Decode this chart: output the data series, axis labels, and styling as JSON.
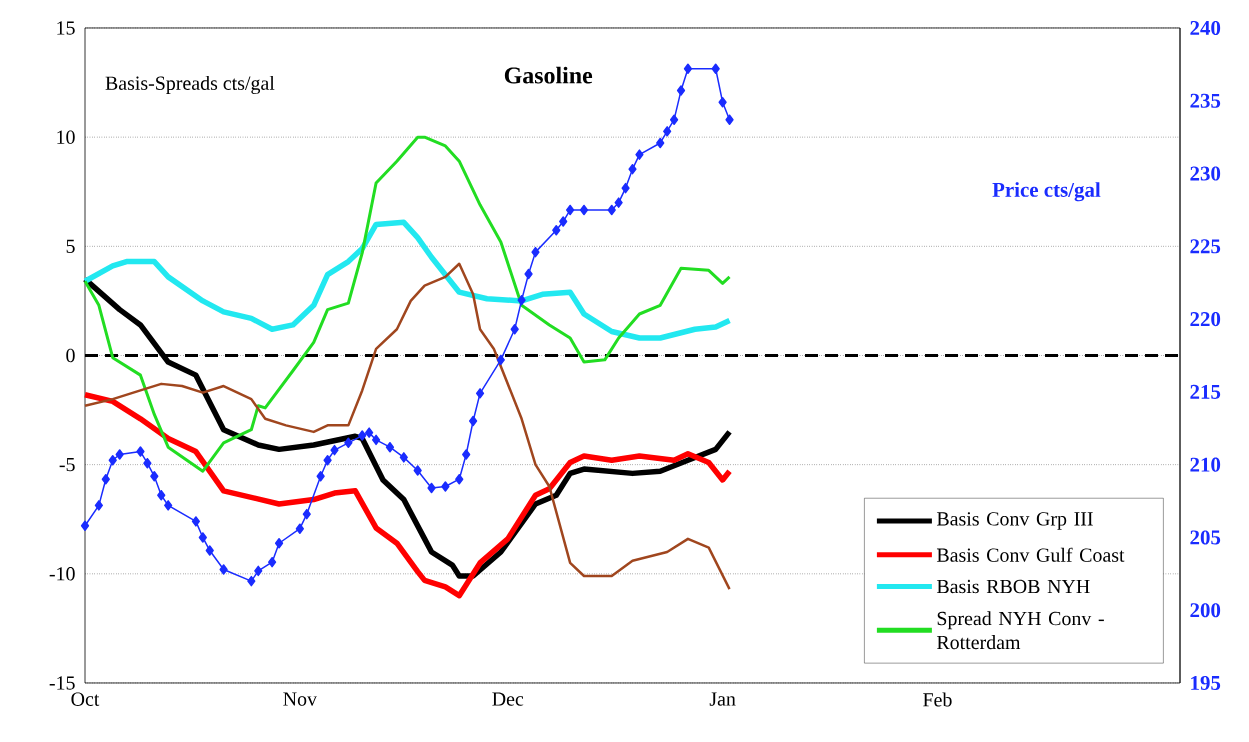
{
  "chart_data": {
    "type": "line",
    "title": "Gasoline",
    "ylabel": "Basis-Spreads cts/gal",
    "y2label": "Price cts/gal",
    "categories": [
      "Oct",
      null,
      null,
      null,
      null,
      null,
      null,
      null,
      null,
      null,
      null,
      null,
      null,
      null,
      null,
      null,
      null,
      null,
      null,
      null,
      null,
      null,
      null,
      null,
      null,
      null,
      null,
      null,
      null,
      null,
      null,
      "Nov",
      null,
      null,
      null,
      null,
      null,
      null,
      null,
      null,
      null,
      null,
      null,
      null,
      null,
      null,
      null,
      null,
      null,
      null,
      null,
      null,
      null,
      null,
      null,
      null,
      null,
      null,
      null,
      null,
      null,
      "Dec",
      null,
      null,
      null,
      null,
      null,
      null,
      null,
      null,
      null,
      null,
      null,
      null,
      null,
      null,
      null,
      null,
      null,
      null,
      null,
      null,
      null,
      null,
      null,
      null,
      null,
      null,
      null,
      null,
      null,
      null,
      "Jan",
      null,
      null,
      null,
      null,
      null,
      null,
      null,
      null,
      null,
      null,
      null,
      null,
      null,
      null,
      null,
      null,
      null,
      null,
      null,
      null,
      null,
      null,
      null,
      null,
      null,
      null,
      null,
      null,
      null,
      null,
      "Feb",
      null,
      null,
      null,
      null,
      null,
      null,
      null,
      null,
      null,
      null,
      null,
      null,
      null,
      null,
      null,
      null,
      null,
      null,
      null,
      null,
      null,
      null,
      null,
      null,
      null,
      null,
      null,
      null,
      null,
      null,
      null,
      null,
      null,
      null,
      null
    ],
    "ylim": [
      -15,
      15
    ],
    "yticks": [
      {
        "value": -15,
        "label": "-15"
      },
      {
        "value": -10,
        "label": "-10"
      },
      {
        "value": -5,
        "label": "-5"
      },
      {
        "value": 0,
        "label": "0"
      },
      {
        "value": 5,
        "label": "5"
      },
      {
        "value": 10,
        "label": "10"
      },
      {
        "value": 15,
        "label": "15"
      }
    ],
    "y2lim": [
      195,
      240
    ],
    "y2ticks": [
      {
        "value": 195,
        "label": "195"
      },
      {
        "value": 200,
        "label": "200"
      },
      {
        "value": 205,
        "label": "205"
      },
      {
        "value": 210,
        "label": "210"
      },
      {
        "value": 215,
        "label": "215"
      },
      {
        "value": 220,
        "label": "220"
      },
      {
        "value": 225,
        "label": "225"
      },
      {
        "value": 230,
        "label": "230"
      },
      {
        "value": 235,
        "label": "235"
      },
      {
        "value": 240,
        "label": "240"
      }
    ],
    "grid": "y",
    "legend": "bottom right",
    "ref_lines": [
      {
        "axis": "y",
        "value": 0,
        "color": "#000000",
        "line_style": "dashed"
      }
    ],
    "series": [
      {
        "name": "Basis Conv Grp III",
        "color": "#000000",
        "marker": "none",
        "values": [
          3.5,
          null,
          null,
          null,
          null,
          2.1,
          null,
          null,
          1.4,
          null,
          null,
          null,
          -0.3,
          null,
          null,
          null,
          -0.9,
          null,
          null,
          null,
          -3.4,
          null,
          null,
          null,
          null,
          -4.1,
          null,
          null,
          -4.3,
          null,
          null,
          null,
          null,
          -4.1,
          null,
          null,
          null,
          null,
          null,
          -3.7,
          -3.8,
          null,
          null,
          -5.7,
          null,
          null,
          -6.6,
          null,
          null,
          -8.4,
          -9.0,
          null,
          null,
          -9.6,
          -10.1,
          null,
          -10.1,
          null,
          null,
          null,
          -9.0,
          null,
          null,
          null,
          null,
          -6.8,
          null,
          null,
          -6.4,
          null,
          -5.4,
          null,
          -5.2,
          null,
          null,
          null,
          null,
          null,
          null,
          -5.4,
          null,
          null,
          null,
          -5.3,
          null,
          null,
          null,
          -4.8,
          null,
          null,
          null,
          -4.3,
          null,
          -3.5,
          null,
          null,
          null,
          null,
          null,
          null,
          null,
          null,
          null,
          null,
          null,
          null,
          null,
          null,
          null,
          null,
          null,
          null,
          null,
          null,
          null,
          null,
          null,
          null,
          null,
          null,
          null,
          null,
          null,
          null,
          null,
          null,
          null,
          null,
          null,
          null,
          null,
          null,
          null,
          null,
          null,
          null,
          null,
          null,
          null,
          null,
          null,
          null,
          null,
          null,
          null,
          null,
          null,
          null,
          null,
          null,
          null,
          null,
          null,
          null,
          null,
          null,
          null,
          null,
          null
        ]
      },
      {
        "name": "Basis Conv Gulf Coast",
        "color": "#ff0000",
        "marker": "none",
        "values": [
          -1.8,
          null,
          null,
          null,
          -2.1,
          null,
          null,
          null,
          -2.9,
          null,
          null,
          null,
          -3.8,
          null,
          null,
          null,
          -4.4,
          null,
          null,
          null,
          -6.2,
          null,
          null,
          null,
          null,
          null,
          null,
          null,
          -6.8,
          null,
          null,
          null,
          null,
          -6.6,
          null,
          null,
          -6.3,
          null,
          null,
          -6.2,
          null,
          null,
          -7.9,
          null,
          null,
          -8.6,
          null,
          null,
          -9.9,
          -10.3,
          null,
          null,
          -10.6,
          null,
          -11.0,
          null,
          null,
          -9.5,
          null,
          null,
          null,
          -8.4,
          null,
          null,
          null,
          -6.4,
          null,
          -6.1,
          null,
          null,
          -4.9,
          null,
          -4.6,
          null,
          null,
          null,
          -4.8,
          null,
          null,
          null,
          -4.6,
          null,
          null,
          null,
          null,
          -4.8,
          null,
          -4.5,
          null,
          null,
          -4.9,
          null,
          -5.7,
          -5.3,
          null,
          null,
          null,
          null,
          null,
          null,
          null,
          null,
          null,
          null,
          null,
          null,
          null,
          null,
          null,
          null,
          null,
          null,
          null,
          null,
          null,
          null,
          null,
          null,
          null,
          null,
          null,
          null,
          null,
          null,
          null,
          null,
          null,
          null,
          null,
          null,
          null,
          null,
          null,
          null,
          null,
          null,
          null,
          null,
          null,
          null,
          null,
          null,
          null,
          null,
          null,
          null,
          null,
          null,
          null,
          null,
          null,
          null,
          null,
          null,
          null,
          null,
          null,
          null,
          null
        ]
      },
      {
        "name": "Basis RBOB NYH",
        "color": "#22e8f0",
        "marker": "none",
        "values": [
          3.4,
          null,
          null,
          null,
          4.1,
          null,
          4.3,
          null,
          null,
          null,
          4.3,
          null,
          3.6,
          null,
          null,
          null,
          null,
          2.5,
          null,
          null,
          2.0,
          null,
          null,
          null,
          1.7,
          null,
          null,
          1.2,
          null,
          null,
          1.4,
          null,
          null,
          2.3,
          null,
          3.7,
          null,
          null,
          4.3,
          null,
          4.9,
          null,
          6.0,
          null,
          null,
          null,
          6.1,
          null,
          5.4,
          null,
          4.5,
          null,
          null,
          null,
          2.9,
          null,
          null,
          null,
          2.6,
          null,
          null,
          null,
          null,
          2.5,
          null,
          null,
          2.8,
          null,
          null,
          null,
          2.9,
          null,
          1.9,
          null,
          null,
          null,
          1.1,
          null,
          null,
          null,
          0.8,
          null,
          null,
          0.8,
          null,
          null,
          null,
          null,
          1.2,
          null,
          null,
          1.3,
          null,
          1.6,
          null,
          null,
          null,
          null,
          null,
          null,
          null,
          null,
          null,
          null,
          null,
          null,
          null,
          null,
          null,
          null,
          null,
          null,
          null,
          null,
          null,
          null,
          null,
          null,
          null,
          null,
          null,
          null,
          null,
          null,
          null,
          null,
          null,
          null,
          null,
          null,
          null,
          null,
          null,
          null,
          null,
          null,
          null,
          null,
          null,
          null,
          null,
          null,
          null,
          null,
          null,
          null,
          null,
          null,
          null,
          null,
          null,
          null,
          null,
          null,
          null,
          null,
          null,
          null,
          null
        ]
      },
      {
        "name": "Spread NYH Conv - Rotterdam",
        "color": "#22dd22",
        "marker": "none",
        "values": [
          3.4,
          null,
          2.3,
          null,
          -0.1,
          null,
          null,
          null,
          -0.9,
          null,
          -2.7,
          null,
          -4.2,
          null,
          null,
          null,
          null,
          -5.3,
          null,
          null,
          -4.0,
          null,
          null,
          null,
          -3.4,
          -2.3,
          -2.4,
          null,
          null,
          null,
          -0.7,
          null,
          null,
          0.6,
          null,
          2.1,
          null,
          null,
          2.4,
          null,
          4.7,
          null,
          7.9,
          null,
          null,
          8.9,
          null,
          null,
          10.0,
          10.0,
          null,
          null,
          9.6,
          null,
          8.9,
          null,
          null,
          6.9,
          null,
          null,
          5.2,
          null,
          null,
          2.3,
          null,
          null,
          null,
          1.4,
          null,
          null,
          0.8,
          null,
          -0.3,
          null,
          null,
          -0.2,
          null,
          0.8,
          null,
          null,
          1.9,
          null,
          null,
          2.3,
          null,
          null,
          4.0,
          null,
          null,
          null,
          3.9,
          null,
          3.3,
          3.6,
          null,
          null,
          null,
          null,
          null,
          null,
          null,
          null,
          null,
          null,
          null,
          null,
          null,
          null,
          null,
          null,
          null,
          null,
          null,
          null,
          null,
          null,
          null,
          null,
          null,
          null,
          null,
          null,
          null,
          null,
          null,
          null,
          null,
          null,
          null,
          null,
          null,
          null,
          null,
          null,
          null,
          null,
          null,
          null,
          null,
          null,
          null,
          null,
          null,
          null,
          null,
          null,
          null,
          null,
          null,
          null,
          null,
          null,
          null,
          null,
          null,
          null,
          null,
          null,
          null
        ]
      },
      {
        "color": "#a0461e",
        "marker": "none",
        "values": [
          -2.3,
          null,
          null,
          null,
          -2.0,
          null,
          null,
          null,
          -1.6,
          null,
          null,
          -1.3,
          null,
          null,
          -1.4,
          null,
          null,
          -1.7,
          null,
          null,
          -1.4,
          null,
          null,
          null,
          -2.0,
          null,
          -2.9,
          null,
          null,
          -3.2,
          null,
          null,
          null,
          -3.5,
          null,
          -3.2,
          null,
          null,
          -3.2,
          null,
          -1.6,
          null,
          0.3,
          null,
          null,
          1.2,
          null,
          2.5,
          null,
          3.2,
          null,
          null,
          3.6,
          null,
          4.2,
          null,
          2.8,
          1.2,
          null,
          0.3,
          null,
          null,
          null,
          -2.9,
          null,
          -5.0,
          null,
          -6.0,
          null,
          null,
          -9.5,
          null,
          -10.1,
          null,
          null,
          null,
          -10.1,
          null,
          null,
          -9.4,
          null,
          null,
          null,
          null,
          -9.0,
          null,
          null,
          -8.4,
          null,
          null,
          -8.8,
          null,
          null,
          -10.7,
          null,
          null,
          null,
          null,
          null,
          null,
          null,
          null,
          null,
          null,
          null,
          null,
          null,
          null,
          null,
          null,
          null,
          null,
          null,
          null,
          null,
          null,
          null,
          null,
          null,
          null,
          null,
          null,
          null,
          null,
          null,
          null,
          null,
          null,
          null,
          null,
          null,
          null,
          null,
          null,
          null,
          null,
          null,
          null,
          null,
          null,
          null,
          null,
          null,
          null,
          null,
          null,
          null,
          null,
          null,
          null,
          null,
          null,
          null,
          null,
          null,
          null,
          null,
          null,
          null
        ]
      },
      {
        "color": "#1a2cff",
        "marker": "diamond",
        "axis": "y2",
        "values": [
          205.8,
          null,
          207.2,
          209.0,
          210.3,
          210.7,
          null,
          null,
          210.9,
          210.1,
          209.2,
          207.9,
          207.2,
          null,
          null,
          null,
          206.1,
          205.0,
          204.1,
          null,
          202.8,
          null,
          null,
          null,
          202.0,
          202.7,
          null,
          203.3,
          204.6,
          null,
          null,
          205.6,
          206.6,
          null,
          209.2,
          210.3,
          211.0,
          null,
          211.5,
          null,
          212.0,
          212.2,
          211.7,
          null,
          211.2,
          null,
          210.5,
          null,
          209.6,
          null,
          208.4,
          null,
          208.5,
          null,
          209.0,
          210.7,
          213.0,
          214.9,
          null,
          null,
          217.2,
          null,
          219.3,
          221.3,
          223.1,
          224.6,
          null,
          null,
          226.1,
          226.7,
          227.5,
          null,
          227.5,
          null,
          null,
          null,
          227.5,
          228.0,
          229.0,
          230.3,
          231.3,
          null,
          null,
          232.1,
          232.9,
          233.7,
          235.7,
          237.2,
          null,
          null,
          null,
          237.2,
          234.9,
          233.7,
          null,
          null,
          null,
          null,
          null,
          null,
          null,
          null,
          null,
          null,
          null,
          null,
          null,
          null,
          null,
          null,
          null,
          null,
          null,
          null,
          null,
          null,
          null,
          null,
          null,
          null,
          null,
          null,
          null,
          null,
          null,
          null,
          null,
          null,
          null,
          null,
          null,
          null,
          null,
          null,
          null,
          null,
          null,
          null,
          null,
          null,
          null,
          null,
          null,
          null,
          null,
          null,
          null,
          null,
          null,
          null,
          null,
          null,
          null,
          null,
          null,
          null,
          null,
          null,
          null
        ]
      }
    ]
  }
}
